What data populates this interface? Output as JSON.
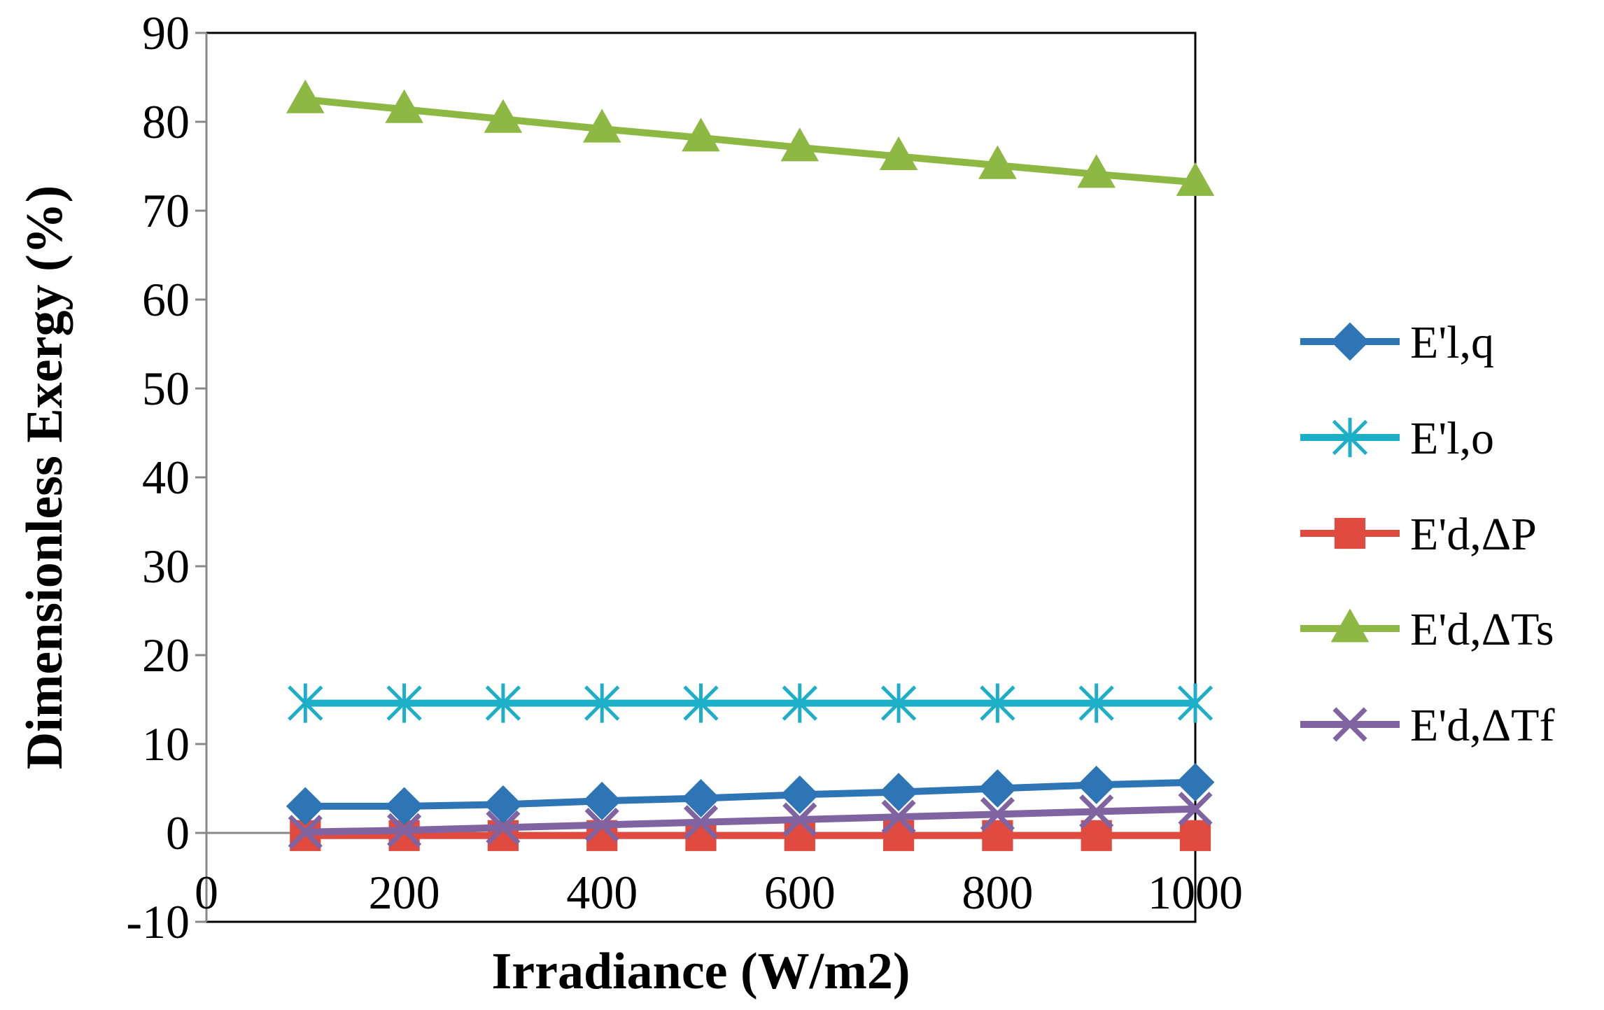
{
  "chart_data": {
    "type": "line",
    "title": "",
    "xlabel": "Irradiance (W/m2)",
    "ylabel": "Dimensionless Exergy (%)",
    "xlim": [
      0,
      1000
    ],
    "ylim": [
      -10,
      90
    ],
    "xticks": [
      0,
      200,
      400,
      600,
      800,
      1000
    ],
    "yticks": [
      -10,
      0,
      10,
      20,
      30,
      40,
      50,
      60,
      70,
      80,
      90
    ],
    "grid": false,
    "legend_position": "right",
    "x": [
      100,
      200,
      300,
      400,
      500,
      600,
      700,
      800,
      900,
      1000
    ],
    "series": [
      {
        "name": "E'l,q",
        "color": "#2E75B6",
        "marker": "diamond",
        "values": [
          3.0,
          3.0,
          3.2,
          3.6,
          3.9,
          4.3,
          4.6,
          5.0,
          5.4,
          5.7
        ]
      },
      {
        "name": "E'l,o",
        "color": "#1EAFC8",
        "marker": "asterisk",
        "values": [
          14.6,
          14.6,
          14.6,
          14.6,
          14.6,
          14.6,
          14.6,
          14.6,
          14.6,
          14.6
        ]
      },
      {
        "name": "E'd,ΔP",
        "color": "#E04A3F",
        "marker": "square",
        "values": [
          -0.3,
          -0.3,
          -0.3,
          -0.3,
          -0.3,
          -0.3,
          -0.3,
          -0.3,
          -0.3,
          -0.3
        ]
      },
      {
        "name": "E'd,ΔTs",
        "color": "#8DB843",
        "marker": "triangle",
        "values": [
          82.5,
          81.4,
          80.3,
          79.2,
          78.2,
          77.1,
          76.1,
          75.1,
          74.1,
          73.2
        ]
      },
      {
        "name": "E'd,ΔTf",
        "color": "#8064A2",
        "marker": "x",
        "values": [
          0.1,
          0.3,
          0.6,
          0.9,
          1.2,
          1.5,
          1.8,
          2.1,
          2.4,
          2.7
        ]
      }
    ]
  }
}
